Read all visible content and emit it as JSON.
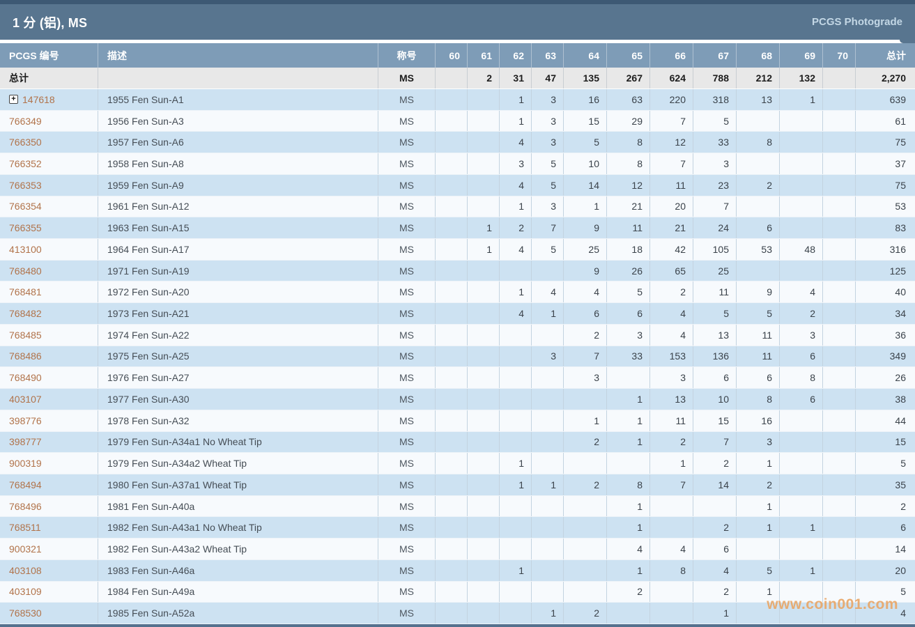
{
  "title_bar": {
    "title": "1 分 (铝), MS",
    "link": "PCGS Photograde"
  },
  "table": {
    "columns": {
      "pcgs": "PCGS 编号",
      "desc": "描述",
      "designation": "称号",
      "grades": [
        "60",
        "61",
        "62",
        "63",
        "64",
        "65",
        "66",
        "67",
        "68",
        "69",
        "70"
      ],
      "total": "总计"
    },
    "total_row": {
      "pcgs": "总计",
      "desc": "",
      "designation": "MS",
      "grades": [
        "",
        "2",
        "31",
        "47",
        "135",
        "267",
        "624",
        "788",
        "212",
        "132",
        ""
      ],
      "total": "2,270"
    },
    "rows": [
      {
        "pcgs": "147618",
        "expandable": true,
        "desc": "1955 Fen Sun-A1",
        "designation": "MS",
        "grades": [
          "",
          "",
          "1",
          "3",
          "16",
          "63",
          "220",
          "318",
          "13",
          "1",
          ""
        ],
        "total": "639"
      },
      {
        "pcgs": "766349",
        "desc": "1956 Fen Sun-A3",
        "designation": "MS",
        "grades": [
          "",
          "",
          "1",
          "3",
          "15",
          "29",
          "7",
          "5",
          "",
          "",
          ""
        ],
        "total": "61"
      },
      {
        "pcgs": "766350",
        "desc": "1957 Fen Sun-A6",
        "designation": "MS",
        "grades": [
          "",
          "",
          "4",
          "3",
          "5",
          "8",
          "12",
          "33",
          "8",
          "",
          ""
        ],
        "total": "75"
      },
      {
        "pcgs": "766352",
        "desc": "1958 Fen Sun-A8",
        "designation": "MS",
        "grades": [
          "",
          "",
          "3",
          "5",
          "10",
          "8",
          "7",
          "3",
          "",
          "",
          ""
        ],
        "total": "37"
      },
      {
        "pcgs": "766353",
        "desc": "1959 Fen Sun-A9",
        "designation": "MS",
        "grades": [
          "",
          "",
          "4",
          "5",
          "14",
          "12",
          "11",
          "23",
          "2",
          "",
          ""
        ],
        "total": "75"
      },
      {
        "pcgs": "766354",
        "desc": "1961 Fen Sun-A12",
        "designation": "MS",
        "grades": [
          "",
          "",
          "1",
          "3",
          "1",
          "21",
          "20",
          "7",
          "",
          "",
          ""
        ],
        "total": "53"
      },
      {
        "pcgs": "766355",
        "desc": "1963 Fen Sun-A15",
        "designation": "MS",
        "grades": [
          "",
          "1",
          "2",
          "7",
          "9",
          "11",
          "21",
          "24",
          "6",
          "",
          ""
        ],
        "total": "83"
      },
      {
        "pcgs": "413100",
        "desc": "1964 Fen Sun-A17",
        "designation": "MS",
        "grades": [
          "",
          "1",
          "4",
          "5",
          "25",
          "18",
          "42",
          "105",
          "53",
          "48",
          ""
        ],
        "total": "316"
      },
      {
        "pcgs": "768480",
        "desc": "1971 Fen Sun-A19",
        "designation": "MS",
        "grades": [
          "",
          "",
          "",
          "",
          "9",
          "26",
          "65",
          "25",
          "",
          "",
          ""
        ],
        "total": "125"
      },
      {
        "pcgs": "768481",
        "desc": "1972 Fen Sun-A20",
        "designation": "MS",
        "grades": [
          "",
          "",
          "1",
          "4",
          "4",
          "5",
          "2",
          "11",
          "9",
          "4",
          ""
        ],
        "total": "40"
      },
      {
        "pcgs": "768482",
        "desc": "1973 Fen Sun-A21",
        "designation": "MS",
        "grades": [
          "",
          "",
          "4",
          "1",
          "6",
          "6",
          "4",
          "5",
          "5",
          "2",
          ""
        ],
        "total": "34"
      },
      {
        "pcgs": "768485",
        "desc": "1974 Fen Sun-A22",
        "designation": "MS",
        "grades": [
          "",
          "",
          "",
          "",
          "2",
          "3",
          "4",
          "13",
          "11",
          "3",
          ""
        ],
        "total": "36"
      },
      {
        "pcgs": "768486",
        "desc": "1975 Fen Sun-A25",
        "designation": "MS",
        "grades": [
          "",
          "",
          "",
          "3",
          "7",
          "33",
          "153",
          "136",
          "11",
          "6",
          ""
        ],
        "total": "349"
      },
      {
        "pcgs": "768490",
        "desc": "1976 Fen Sun-A27",
        "designation": "MS",
        "grades": [
          "",
          "",
          "",
          "",
          "3",
          "",
          "3",
          "6",
          "6",
          "8",
          ""
        ],
        "total": "26"
      },
      {
        "pcgs": "403107",
        "desc": "1977 Fen Sun-A30",
        "designation": "MS",
        "grades": [
          "",
          "",
          "",
          "",
          "",
          "1",
          "13",
          "10",
          "8",
          "6",
          ""
        ],
        "total": "38"
      },
      {
        "pcgs": "398776",
        "desc": "1978 Fen Sun-A32",
        "designation": "MS",
        "grades": [
          "",
          "",
          "",
          "",
          "1",
          "1",
          "11",
          "15",
          "16",
          "",
          ""
        ],
        "total": "44"
      },
      {
        "pcgs": "398777",
        "desc": "1979 Fen Sun-A34a1 No Wheat Tip",
        "designation": "MS",
        "grades": [
          "",
          "",
          "",
          "",
          "2",
          "1",
          "2",
          "7",
          "3",
          "",
          ""
        ],
        "total": "15"
      },
      {
        "pcgs": "900319",
        "desc": "1979 Fen Sun-A34a2 Wheat Tip",
        "designation": "MS",
        "grades": [
          "",
          "",
          "1",
          "",
          "",
          "",
          "1",
          "2",
          "1",
          "",
          ""
        ],
        "total": "5"
      },
      {
        "pcgs": "768494",
        "desc": "1980 Fen Sun-A37a1 Wheat Tip",
        "designation": "MS",
        "grades": [
          "",
          "",
          "1",
          "1",
          "2",
          "8",
          "7",
          "14",
          "2",
          "",
          ""
        ],
        "total": "35"
      },
      {
        "pcgs": "768496",
        "desc": "1981 Fen Sun-A40a",
        "designation": "MS",
        "grades": [
          "",
          "",
          "",
          "",
          "",
          "1",
          "",
          "",
          "1",
          "",
          ""
        ],
        "total": "2"
      },
      {
        "pcgs": "768511",
        "desc": "1982 Fen Sun-A43a1 No Wheat Tip",
        "designation": "MS",
        "grades": [
          "",
          "",
          "",
          "",
          "",
          "1",
          "",
          "2",
          "1",
          "1",
          ""
        ],
        "total": "6"
      },
      {
        "pcgs": "900321",
        "desc": "1982 Fen Sun-A43a2 Wheat Tip",
        "designation": "MS",
        "grades": [
          "",
          "",
          "",
          "",
          "",
          "4",
          "4",
          "6",
          "",
          "",
          ""
        ],
        "total": "14"
      },
      {
        "pcgs": "403108",
        "desc": "1983 Fen Sun-A46a",
        "designation": "MS",
        "grades": [
          "",
          "",
          "1",
          "",
          "",
          "1",
          "8",
          "4",
          "5",
          "1",
          ""
        ],
        "total": "20"
      },
      {
        "pcgs": "403109",
        "desc": "1984 Fen Sun-A49a",
        "designation": "MS",
        "grades": [
          "",
          "",
          "",
          "",
          "",
          "2",
          "",
          "2",
          "1",
          "",
          ""
        ],
        "total": "5"
      },
      {
        "pcgs": "768530",
        "desc": "1985 Fen Sun-A52a",
        "designation": "MS",
        "grades": [
          "",
          "",
          "",
          "1",
          "2",
          "",
          "",
          "1",
          "",
          "",
          ""
        ],
        "total": "4"
      }
    ]
  },
  "watermark": "www.coin001.com",
  "colors": {
    "title_bar": "#58758f",
    "title_bar_top_strip": "#3d5974",
    "header_row": "#7e9cb7",
    "totals_row_bg": "#e8e8e8",
    "row_blue": "#cde2f2",
    "row_light": "#f7fafd",
    "pcgs_link": "#b1734a",
    "watermark": "#e9a768"
  }
}
